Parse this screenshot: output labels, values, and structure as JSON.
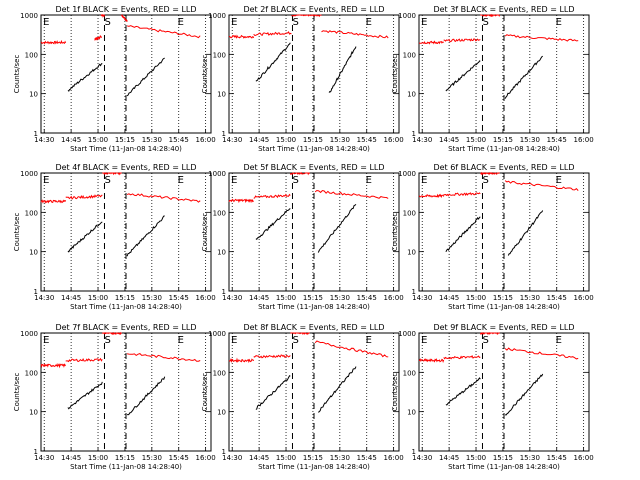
{
  "chart_data": [
    {
      "type": "line",
      "title": "Det 1f BLACK = Events, RED = LLD",
      "ylabel": "Counts/sec",
      "xlabel": "Start Time (11-Jan-08 14:28:40)",
      "x_ticks": [
        "14:30",
        "14:45",
        "15:00",
        "15:15",
        "15:30",
        "15:45",
        "16:00"
      ],
      "y_ticks": [
        "1",
        "10",
        "100",
        "1000"
      ],
      "ylim": [
        1,
        1000
      ],
      "y_scale": "log",
      "markers": [
        "E",
        "S",
        "E"
      ],
      "series": [
        {
          "color": "#ff0000",
          "segments": [
            {
              "x": [
                14.47,
                14.7
              ],
              "y": [
                200,
                200
              ]
            },
            {
              "x": [
                14.97,
                15.03
              ],
              "y": [
                240,
                280
              ]
            },
            {
              "x": [
                15.03,
                15.06
              ],
              "y": [
                1000,
                1000
              ]
            },
            {
              "x": [
                15.22,
                15.27
              ],
              "y": [
                1000,
                700
              ]
            },
            {
              "x": [
                15.27,
                15.95
              ],
              "y": [
                520,
                280
              ]
            }
          ]
        },
        {
          "color": "#000000",
          "segments": [
            {
              "x": [
                14.72,
                15.04
              ],
              "y": [
                12,
                60
              ]
            },
            {
              "x": [
                15.27,
                15.62
              ],
              "y": [
                9,
                80
              ]
            }
          ]
        }
      ]
    },
    {
      "type": "line",
      "title": "Det 2f BLACK = Events, RED = LLD",
      "ylabel": "Counts/sec",
      "xlabel": "Start Time (11-Jan-08 14:28:40)",
      "x_ticks": [
        "14:30",
        "14:45",
        "15:00",
        "15:15",
        "15:30",
        "15:45",
        "16:00"
      ],
      "y_ticks": [
        "1",
        "10",
        "100",
        "1000"
      ],
      "ylim": [
        1,
        1000
      ],
      "y_scale": "log",
      "markers": [
        "E",
        "S",
        "E"
      ],
      "series": [
        {
          "color": "#ff0000",
          "segments": [
            {
              "x": [
                14.47,
                14.7
              ],
              "y": [
                280,
                280
              ]
            },
            {
              "x": [
                14.7,
                15.05
              ],
              "y": [
                320,
                350
              ]
            },
            {
              "x": [
                15.05,
                15.33
              ],
              "y": [
                1000,
                1000
              ]
            },
            {
              "x": [
                15.33,
                15.95
              ],
              "y": [
                400,
                270
              ]
            }
          ]
        },
        {
          "color": "#000000",
          "segments": [
            {
              "x": [
                14.72,
                15.04
              ],
              "y": [
                20,
                190
              ]
            },
            {
              "x": [
                15.4,
                15.65
              ],
              "y": [
                10,
                160
              ]
            }
          ]
        }
      ]
    },
    {
      "type": "line",
      "title": "Det 3f BLACK = Events, RED = LLD",
      "ylabel": "Counts/sec",
      "xlabel": "Start Time (11-Jan-08 14:28:40)",
      "x_ticks": [
        "14:30",
        "14:45",
        "15:00",
        "15:15",
        "15:30",
        "15:45",
        "16:00"
      ],
      "y_ticks": [
        "1",
        "10",
        "100",
        "1000"
      ],
      "ylim": [
        1,
        1000
      ],
      "y_scale": "log",
      "markers": [
        "E",
        "S",
        "E"
      ],
      "series": [
        {
          "color": "#ff0000",
          "segments": [
            {
              "x": [
                14.47,
                14.7
              ],
              "y": [
                200,
                200
              ]
            },
            {
              "x": [
                14.7,
                15.04
              ],
              "y": [
                220,
                240
              ]
            },
            {
              "x": [
                15.04,
                15.22
              ],
              "y": [
                1000,
                1000
              ]
            },
            {
              "x": [
                15.27,
                15.95
              ],
              "y": [
                300,
                220
              ]
            }
          ]
        },
        {
          "color": "#000000",
          "segments": [
            {
              "x": [
                14.72,
                15.04
              ],
              "y": [
                12,
                70
              ]
            },
            {
              "x": [
                15.27,
                15.62
              ],
              "y": [
                8,
                90
              ]
            }
          ]
        }
      ]
    },
    {
      "type": "line",
      "title": "Det 4f BLACK = Events, RED = LLD",
      "ylabel": "Counts/sec",
      "xlabel": "Start Time (11-Jan-08 14:28:40)",
      "x_ticks": [
        "14:30",
        "14:45",
        "15:00",
        "15:15",
        "15:30",
        "15:45",
        "16:00"
      ],
      "y_ticks": [
        "1",
        "10",
        "100",
        "1000"
      ],
      "ylim": [
        1,
        1000
      ],
      "y_scale": "log",
      "markers": [
        "E",
        "S",
        "E"
      ],
      "series": [
        {
          "color": "#ff0000",
          "segments": [
            {
              "x": [
                14.47,
                14.7
              ],
              "y": [
                190,
                190
              ]
            },
            {
              "x": [
                14.7,
                15.04
              ],
              "y": [
                230,
                260
              ]
            },
            {
              "x": [
                15.04,
                15.22
              ],
              "y": [
                1000,
                1000
              ]
            },
            {
              "x": [
                15.27,
                15.95
              ],
              "y": [
                300,
                190
              ]
            }
          ]
        },
        {
          "color": "#000000",
          "segments": [
            {
              "x": [
                14.72,
                15.04
              ],
              "y": [
                10,
                60
              ]
            },
            {
              "x": [
                15.27,
                15.62
              ],
              "y": [
                8,
                80
              ]
            }
          ]
        }
      ]
    },
    {
      "type": "line",
      "title": "Det 5f BLACK = Events, RED = LLD",
      "ylabel": "Counts/sec",
      "xlabel": "Start Time (11-Jan-08 14:28:40)",
      "x_ticks": [
        "14:30",
        "14:45",
        "15:00",
        "15:15",
        "15:30",
        "15:45",
        "16:00"
      ],
      "y_ticks": [
        "1",
        "10",
        "100",
        "1000"
      ],
      "ylim": [
        1,
        1000
      ],
      "y_scale": "log",
      "markers": [
        "E",
        "S",
        "E"
      ],
      "series": [
        {
          "color": "#ff0000",
          "segments": [
            {
              "x": [
                14.47,
                14.7
              ],
              "y": [
                200,
                200
              ]
            },
            {
              "x": [
                14.7,
                15.04
              ],
              "y": [
                240,
                270
              ]
            },
            {
              "x": [
                15.04,
                15.22
              ],
              "y": [
                1000,
                1000
              ]
            },
            {
              "x": [
                15.27,
                15.95
              ],
              "y": [
                350,
                230
              ]
            }
          ]
        },
        {
          "color": "#000000",
          "segments": [
            {
              "x": [
                14.72,
                15.04
              ],
              "y": [
                20,
                130
              ]
            },
            {
              "x": [
                15.3,
                15.65
              ],
              "y": [
                10,
                160
              ]
            }
          ]
        }
      ]
    },
    {
      "type": "line",
      "title": "Det 6f BLACK = Events, RED = LLD",
      "ylabel": "Counts/sec",
      "xlabel": "Start Time (11-Jan-08 14:28:40)",
      "x_ticks": [
        "14:30",
        "14:45",
        "15:00",
        "15:15",
        "15:30",
        "15:45",
        "16:00"
      ],
      "y_ticks": [
        "1",
        "10",
        "100",
        "1000"
      ],
      "ylim": [
        1,
        1000
      ],
      "y_scale": "log",
      "markers": [
        "E",
        "S",
        "E"
      ],
      "series": [
        {
          "color": "#ff0000",
          "segments": [
            {
              "x": [
                14.47,
                14.7
              ],
              "y": [
                260,
                260
              ]
            },
            {
              "x": [
                14.7,
                15.04
              ],
              "y": [
                280,
                300
              ]
            },
            {
              "x": [
                15.04,
                15.22
              ],
              "y": [
                1000,
                1000
              ]
            },
            {
              "x": [
                15.27,
                15.95
              ],
              "y": [
                600,
                380
              ]
            }
          ]
        },
        {
          "color": "#000000",
          "segments": [
            {
              "x": [
                14.72,
                15.04
              ],
              "y": [
                10,
                80
              ]
            },
            {
              "x": [
                15.3,
                15.62
              ],
              "y": [
                8,
                110
              ]
            }
          ]
        }
      ]
    },
    {
      "type": "line",
      "title": "Det 7f BLACK = Events, RED = LLD",
      "ylabel": "Counts/sec",
      "xlabel": "Start Time (11-Jan-08 14:28:40)",
      "x_ticks": [
        "14:30",
        "14:45",
        "15:00",
        "15:15",
        "15:30",
        "15:45",
        "16:00"
      ],
      "y_ticks": [
        "1",
        "10",
        "100",
        "1000"
      ],
      "ylim": [
        1,
        1000
      ],
      "y_scale": "log",
      "markers": [
        "E",
        "S",
        "E"
      ],
      "series": [
        {
          "color": "#ff0000",
          "segments": [
            {
              "x": [
                14.47,
                14.7
              ],
              "y": [
                150,
                150
              ]
            },
            {
              "x": [
                14.7,
                15.04
              ],
              "y": [
                200,
                210
              ]
            },
            {
              "x": [
                15.04,
                15.22
              ],
              "y": [
                1000,
                1000
              ]
            },
            {
              "x": [
                15.27,
                15.95
              ],
              "y": [
                300,
                200
              ]
            }
          ]
        },
        {
          "color": "#000000",
          "segments": [
            {
              "x": [
                14.72,
                15.04
              ],
              "y": [
                12,
                55
              ]
            },
            {
              "x": [
                15.27,
                15.62
              ],
              "y": [
                8,
                75
              ]
            }
          ]
        }
      ]
    },
    {
      "type": "line",
      "title": "Det 8f BLACK = Events, RED = LLD",
      "ylabel": "Counts/sec",
      "xlabel": "Start Time (11-Jan-08 14:28:40)",
      "x_ticks": [
        "14:30",
        "14:45",
        "15:00",
        "15:15",
        "15:30",
        "15:45",
        "16:00"
      ],
      "y_ticks": [
        "1",
        "10",
        "100",
        "1000"
      ],
      "ylim": [
        1,
        1000
      ],
      "y_scale": "log",
      "markers": [
        "E",
        "S",
        "E"
      ],
      "series": [
        {
          "color": "#ff0000",
          "segments": [
            {
              "x": [
                14.47,
                14.7
              ],
              "y": [
                200,
                200
              ]
            },
            {
              "x": [
                14.7,
                15.04
              ],
              "y": [
                250,
                260
              ]
            },
            {
              "x": [
                15.04,
                15.22
              ],
              "y": [
                1000,
                1000
              ]
            },
            {
              "x": [
                15.27,
                15.95
              ],
              "y": [
                600,
                250
              ]
            }
          ]
        },
        {
          "color": "#000000",
          "segments": [
            {
              "x": [
                14.72,
                15.04
              ],
              "y": [
                12,
                80
              ]
            },
            {
              "x": [
                15.3,
                15.65
              ],
              "y": [
                10,
                140
              ]
            }
          ]
        }
      ]
    },
    {
      "type": "line",
      "title": "Det 9f BLACK = Events, RED = LLD",
      "ylabel": "Counts/sec",
      "xlabel": "Start Time (11-Jan-08 14:28:40)",
      "x_ticks": [
        "14:30",
        "14:45",
        "15:00",
        "15:15",
        "15:30",
        "15:45",
        "16:00"
      ],
      "y_ticks": [
        "1",
        "10",
        "100",
        "1000"
      ],
      "ylim": [
        1,
        1000
      ],
      "y_scale": "log",
      "markers": [
        "E",
        "S",
        "E"
      ],
      "series": [
        {
          "color": "#ff0000",
          "segments": [
            {
              "x": [
                14.47,
                14.7
              ],
              "y": [
                200,
                200
              ]
            },
            {
              "x": [
                14.7,
                15.04
              ],
              "y": [
                230,
                250
              ]
            },
            {
              "x": [
                15.04,
                15.22
              ],
              "y": [
                1000,
                1000
              ]
            },
            {
              "x": [
                15.27,
                15.95
              ],
              "y": [
                400,
                230
              ]
            }
          ]
        },
        {
          "color": "#000000",
          "segments": [
            {
              "x": [
                14.72,
                15.04
              ],
              "y": [
                15,
                70
              ]
            },
            {
              "x": [
                15.27,
                15.62
              ],
              "y": [
                8,
                90
              ]
            }
          ]
        }
      ]
    }
  ]
}
